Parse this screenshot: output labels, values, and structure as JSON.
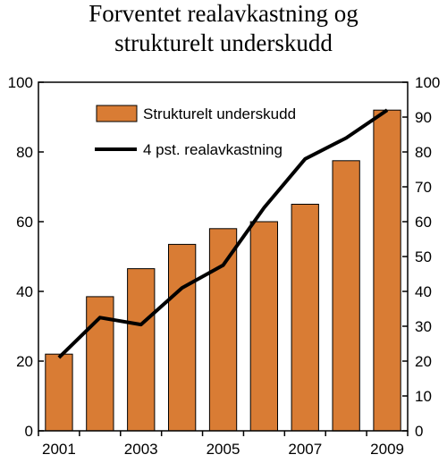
{
  "chart_data": {
    "type": "bar+line",
    "title_lines": [
      "Forventet realavkastning og",
      "strukturelt underskudd"
    ],
    "categories": [
      2001,
      2002,
      2003,
      2004,
      2005,
      2006,
      2007,
      2008,
      2009
    ],
    "x_tick_labels": [
      "2001",
      "2003",
      "2005",
      "2007",
      "2009"
    ],
    "series": [
      {
        "name": "Strukturelt underskudd",
        "type": "bar",
        "axis": "left",
        "color": "#D97C34",
        "values": [
          22,
          38.5,
          46.5,
          53.5,
          58,
          60,
          65,
          77.5,
          92
        ]
      },
      {
        "name": "4 pst. realavkastning",
        "type": "line",
        "axis": "right",
        "color": "#000000",
        "values": [
          21,
          32.5,
          30.5,
          41,
          47.5,
          64,
          78,
          84,
          92
        ]
      }
    ],
    "left_axis": {
      "ylim": [
        0,
        100
      ],
      "ticks": [
        0,
        20,
        40,
        60,
        80,
        100
      ]
    },
    "right_axis": {
      "ylim": [
        0,
        100
      ],
      "ticks": [
        0,
        10,
        20,
        30,
        40,
        50,
        60,
        70,
        80,
        90,
        100
      ]
    },
    "grid": false,
    "legend_position": "top"
  }
}
